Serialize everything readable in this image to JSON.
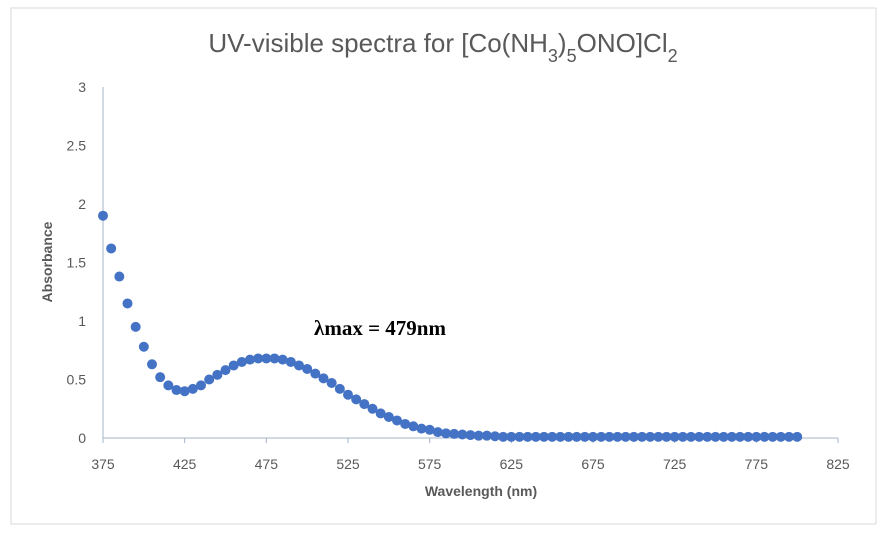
{
  "chart_data": {
    "type": "scatter",
    "title": [
      "UV-visible spectra for [Co(NH",
      "3",
      ")",
      "5",
      "ONO]Cl",
      "2"
    ],
    "x_label": "Wavelength (nm)",
    "y_label": "Absorbance",
    "annotation": "λmax = 479nm",
    "color": "#4472c4",
    "xlim": [
      375,
      825
    ],
    "xticks": [
      375,
      425,
      475,
      525,
      575,
      625,
      675,
      725,
      775,
      825
    ],
    "ylim": [
      0,
      3
    ],
    "yticks": [
      0,
      0.5,
      1,
      1.5,
      2,
      2.5,
      3
    ],
    "x": [
      375,
      380,
      385,
      390,
      395,
      400,
      405,
      410,
      415,
      420,
      425,
      430,
      435,
      440,
      445,
      450,
      455,
      460,
      465,
      470,
      475,
      480,
      485,
      490,
      495,
      500,
      505,
      510,
      515,
      520,
      525,
      530,
      535,
      540,
      545,
      550,
      555,
      560,
      565,
      570,
      575,
      580,
      585,
      590,
      595,
      600,
      605,
      610,
      615,
      620,
      625,
      630,
      635,
      640,
      645,
      650,
      655,
      660,
      665,
      670,
      675,
      680,
      685,
      690,
      695,
      700,
      705,
      710,
      715,
      720,
      725,
      730,
      735,
      740,
      745,
      750,
      755,
      760,
      765,
      770,
      775,
      780,
      785,
      790,
      795,
      800
    ],
    "values": [
      1.9,
      1.62,
      1.38,
      1.15,
      0.95,
      0.78,
      0.63,
      0.52,
      0.45,
      0.41,
      0.4,
      0.42,
      0.45,
      0.5,
      0.54,
      0.58,
      0.62,
      0.65,
      0.67,
      0.68,
      0.68,
      0.68,
      0.67,
      0.65,
      0.62,
      0.59,
      0.55,
      0.51,
      0.47,
      0.42,
      0.37,
      0.33,
      0.29,
      0.25,
      0.21,
      0.18,
      0.15,
      0.12,
      0.1,
      0.08,
      0.07,
      0.05,
      0.04,
      0.035,
      0.03,
      0.025,
      0.02,
      0.02,
      0.015,
      0.01,
      0.01,
      0.01,
      0.01,
      0.01,
      0.01,
      0.01,
      0.01,
      0.01,
      0.01,
      0.01,
      0.01,
      0.01,
      0.01,
      0.01,
      0.01,
      0.01,
      0.01,
      0.01,
      0.01,
      0.01,
      0.01,
      0.01,
      0.01,
      0.01,
      0.01,
      0.01,
      0.01,
      0.01,
      0.01,
      0.01,
      0.01,
      0.01,
      0.01,
      0.01,
      0.01,
      0.01
    ]
  }
}
